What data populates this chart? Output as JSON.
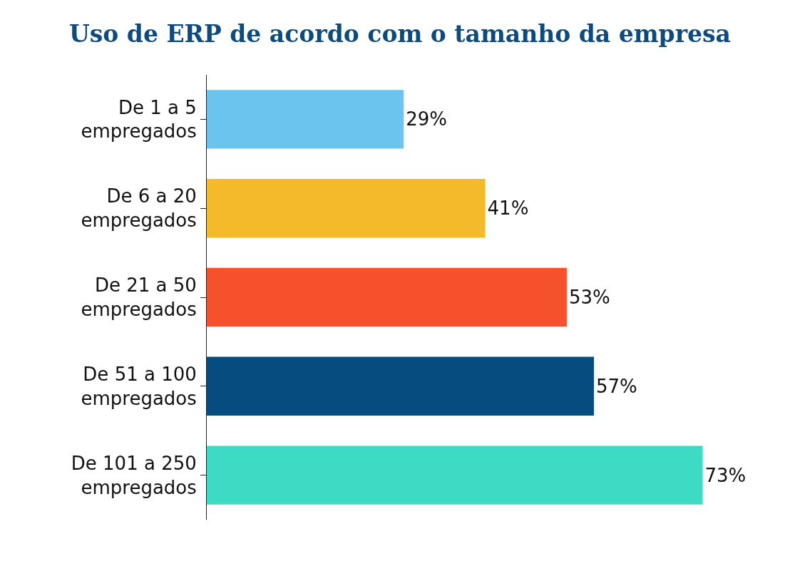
{
  "chart_data": {
    "type": "bar",
    "orientation": "horizontal",
    "title": "Uso de ERP de acordo com o tamanho da empresa",
    "categories": [
      "De 1 a 5 empregados",
      "De 6 a 20 empregados",
      "De 21 a 50 empregados",
      "De 51 a 100 empregados",
      "De 101 a 250 empregados"
    ],
    "values": [
      29,
      41,
      53,
      57,
      73
    ],
    "colors": [
      "#6ac4ee",
      "#f5ba2c",
      "#f4512c",
      "#074c7e",
      "#3ddbc3"
    ],
    "value_labels": [
      "29%",
      "41%",
      "53%",
      "57%",
      "73%"
    ]
  }
}
